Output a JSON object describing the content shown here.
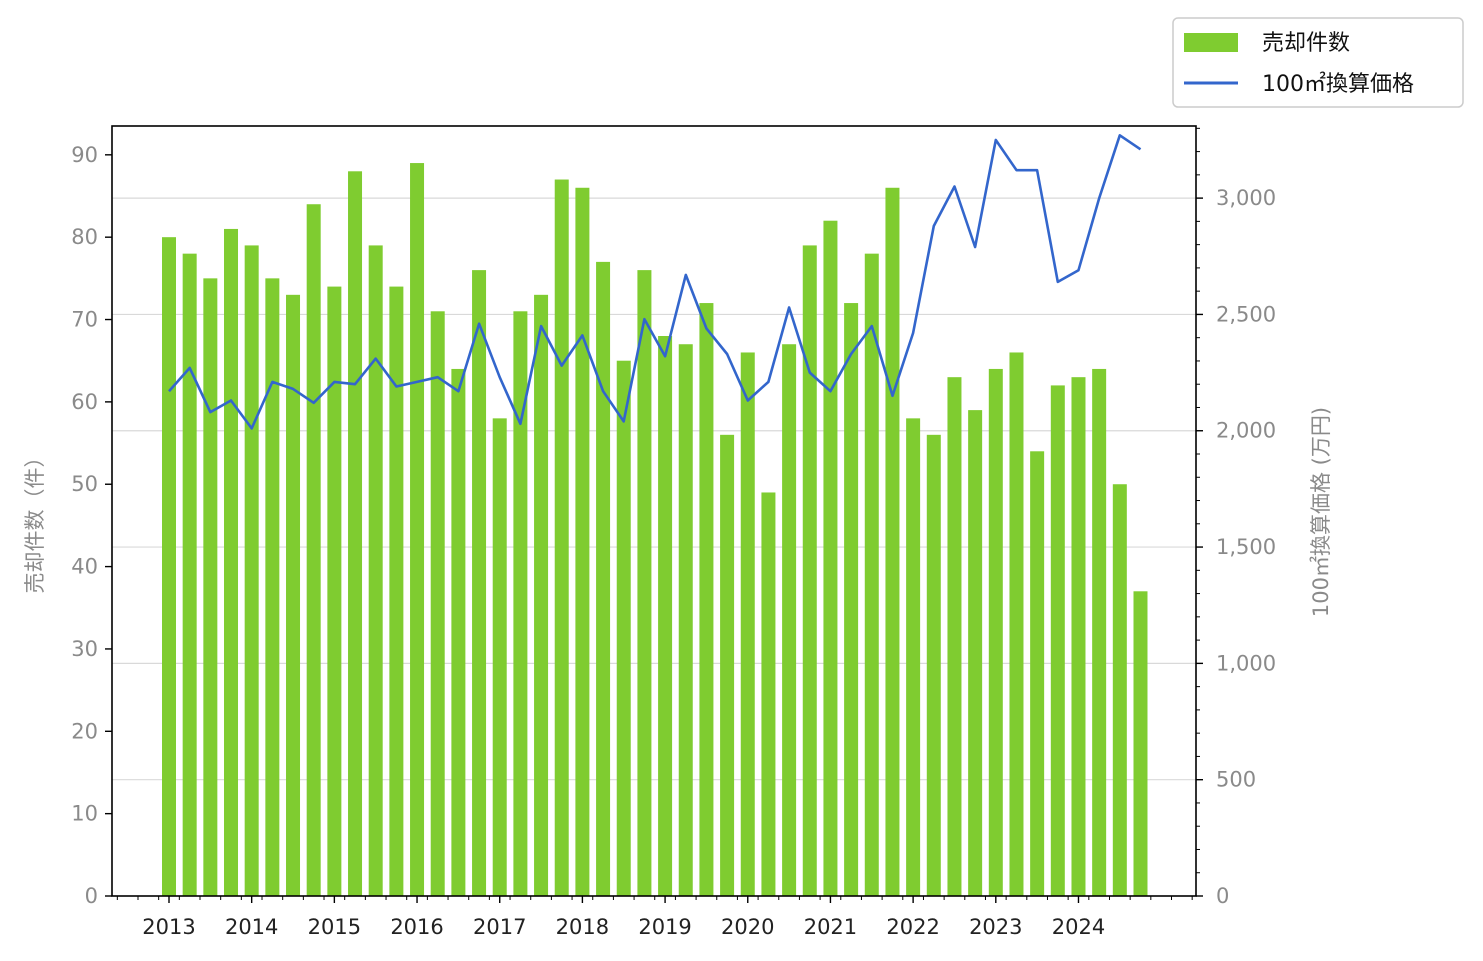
{
  "chart_data": {
    "type": "bar",
    "title": "",
    "xlabel": "",
    "ylabel": "売却件数（件）",
    "y2label": "100㎡換算価格 (万円)",
    "ylim": [
      0,
      93.5
    ],
    "y2lim": [
      0,
      3310
    ],
    "yticks": [
      "0",
      "10",
      "20",
      "30",
      "40",
      "50",
      "60",
      "70",
      "80",
      "90"
    ],
    "y2ticks": [
      "0",
      "500",
      "1,000",
      "1,500",
      "2,000",
      "2,500",
      "3,000"
    ],
    "xticks": [
      "2013",
      "2014",
      "2015",
      "2016",
      "2017",
      "2018",
      "2019",
      "2020",
      "2021",
      "2022",
      "2023",
      "2024"
    ],
    "legend_position": "top-right (outside plot)",
    "grid": "horizontal (right axis)",
    "x": [
      "2013Q1",
      "2013Q2",
      "2013Q3",
      "2013Q4",
      "2014Q1",
      "2014Q2",
      "2014Q3",
      "2014Q4",
      "2015Q1",
      "2015Q2",
      "2015Q3",
      "2015Q4",
      "2016Q1",
      "2016Q2",
      "2016Q3",
      "2016Q4",
      "2017Q1",
      "2017Q2",
      "2017Q3",
      "2017Q4",
      "2018Q1",
      "2018Q2",
      "2018Q3",
      "2018Q4",
      "2019Q1",
      "2019Q2",
      "2019Q3",
      "2019Q4",
      "2020Q1",
      "2020Q2",
      "2020Q3",
      "2020Q4",
      "2021Q1",
      "2021Q2",
      "2021Q3",
      "2021Q4",
      "2022Q1",
      "2022Q2",
      "2022Q3",
      "2022Q4",
      "2023Q1",
      "2023Q2",
      "2023Q3",
      "2023Q4",
      "2024Q1",
      "2024Q2",
      "2024Q3",
      "2024Q4"
    ],
    "series": [
      {
        "name": "売却件数",
        "type": "bar",
        "axis": "left",
        "color": "#7fcc30",
        "values": [
          80,
          78,
          75,
          81,
          79,
          75,
          73,
          84,
          74,
          88,
          79,
          74,
          89,
          71,
          64,
          76,
          58,
          71,
          73,
          87,
          86,
          77,
          65,
          76,
          68,
          67,
          72,
          56,
          66,
          49,
          67,
          79,
          82,
          72,
          78,
          86,
          58,
          56,
          63,
          59,
          64,
          66,
          54,
          62,
          63,
          64,
          50,
          37
        ]
      },
      {
        "name": "100㎡換算価格",
        "type": "line",
        "axis": "right",
        "color": "#3366cc",
        "values": [
          2170,
          2270,
          2080,
          2130,
          2010,
          2210,
          2180,
          2120,
          2210,
          2200,
          2310,
          2190,
          2210,
          2230,
          2170,
          2460,
          2230,
          2030,
          2450,
          2280,
          2410,
          2170,
          2040,
          2480,
          2320,
          2670,
          2440,
          2330,
          2130,
          2210,
          2530,
          2250,
          2170,
          2330,
          2450,
          2150,
          2420,
          2880,
          3050,
          2790,
          3250,
          3120,
          3120,
          2640,
          2690,
          3000,
          3270,
          3210
        ]
      }
    ]
  }
}
